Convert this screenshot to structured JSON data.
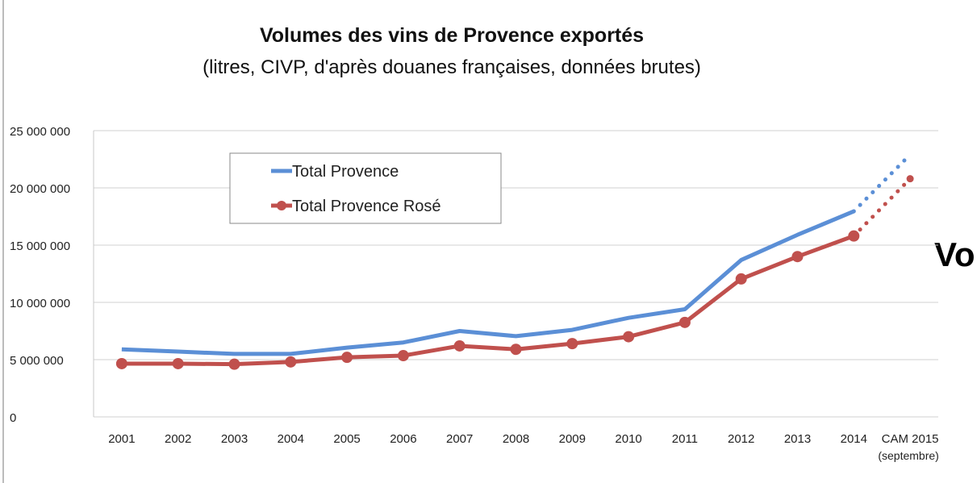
{
  "chart_data": {
    "type": "line",
    "title": "Volumes des vins de Provence exportés",
    "subtitle": "(litres, CIVP, d'après douanes françaises, données brutes)",
    "categories": [
      "2001",
      "2002",
      "2003",
      "2004",
      "2005",
      "2006",
      "2007",
      "2008",
      "2009",
      "2010",
      "2011",
      "2012",
      "2013",
      "2014",
      "CAM 2015"
    ],
    "category_note": "(septembre)",
    "ylim": [
      0,
      25000000
    ],
    "yticks": [
      0,
      5000000,
      10000000,
      15000000,
      20000000,
      25000000
    ],
    "ytick_labels": [
      "0",
      "5 000 000",
      "10 000 000",
      "15 000 000",
      "20 000 000",
      "25 000 000"
    ],
    "grid": true,
    "legend_placement": "top-left",
    "series": [
      {
        "name": "Total Provence",
        "color": "#5b8fd6",
        "marker": false,
        "values": [
          5900000,
          5700000,
          5500000,
          5500000,
          6050000,
          6500000,
          7500000,
          7050000,
          7600000,
          8650000,
          9400000,
          13700000,
          15900000,
          17950000,
          22900000
        ],
        "last_point_projected": true
      },
      {
        "name": "Total Provence Rosé",
        "color": "#c0504d",
        "marker": true,
        "values": [
          4650000,
          4650000,
          4600000,
          4800000,
          5200000,
          5350000,
          6200000,
          5900000,
          6400000,
          7000000,
          8250000,
          12050000,
          14000000,
          15800000,
          20800000
        ],
        "last_point_projected": true
      }
    ]
  },
  "side_text": "Vo"
}
